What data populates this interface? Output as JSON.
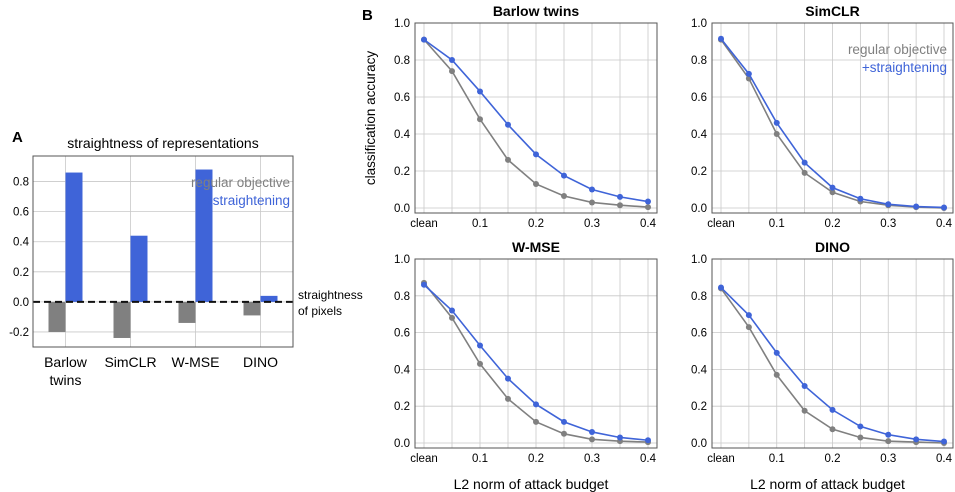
{
  "colors": {
    "regular": "#808080",
    "straightening": "#3f64d8",
    "grid": "#c8c8c8",
    "frame": "#555555"
  },
  "panel_labels": {
    "a": "A",
    "b": "B"
  },
  "legend": {
    "regular": "regular objective",
    "straightening": "+straightening"
  },
  "chart_data": [
    {
      "type": "bar",
      "title": "straightness of representations",
      "categories": [
        "Barlow twins",
        "SimCLR",
        "W-MSE",
        "DINO"
      ],
      "series": [
        {
          "name": "regular objective",
          "values": [
            -0.2,
            -0.24,
            -0.14,
            -0.09
          ]
        },
        {
          "name": "+straightening",
          "values": [
            0.86,
            0.44,
            0.88,
            0.04
          ]
        }
      ],
      "ylim": [
        -0.3,
        0.97
      ],
      "yticks": [
        "-0.2",
        "0.0",
        "0.2",
        "0.4",
        "0.6",
        "0.8"
      ],
      "reference_line": {
        "value": 0,
        "label_line1": "straightness",
        "label_line2": "of pixels"
      },
      "legend_placement": "top-right",
      "grid": true
    },
    {
      "type": "line",
      "title": "Barlow twins",
      "x": [
        0,
        0.05,
        0.1,
        0.15,
        0.2,
        0.25,
        0.3,
        0.35,
        0.4
      ],
      "xtick_labels": [
        "clean",
        "0.1",
        "0.2",
        "0.3",
        "0.4"
      ],
      "yticks": [
        "0.0",
        "0.2",
        "0.4",
        "0.6",
        "0.8",
        "1.0"
      ],
      "ylim": [
        0,
        1.0
      ],
      "ylabel": "classification accuracy",
      "series": [
        {
          "name": "regular objective",
          "values": [
            0.91,
            0.74,
            0.48,
            0.26,
            0.13,
            0.065,
            0.03,
            0.015,
            0.005
          ]
        },
        {
          "name": "+straightening",
          "values": [
            0.91,
            0.8,
            0.63,
            0.45,
            0.29,
            0.175,
            0.1,
            0.06,
            0.035
          ]
        }
      ],
      "grid": true
    },
    {
      "type": "line",
      "title": "SimCLR",
      "x": [
        0,
        0.05,
        0.1,
        0.15,
        0.2,
        0.25,
        0.3,
        0.35,
        0.4
      ],
      "xtick_labels": [
        "clean",
        "0.1",
        "0.2",
        "0.3",
        "0.4"
      ],
      "yticks": [
        "0.0",
        "0.2",
        "0.4",
        "0.6",
        "0.8",
        "1.0"
      ],
      "ylim": [
        0,
        1.0
      ],
      "series": [
        {
          "name": "regular objective",
          "values": [
            0.91,
            0.7,
            0.4,
            0.19,
            0.085,
            0.035,
            0.015,
            0.005,
            0.0
          ]
        },
        {
          "name": "+straightening",
          "values": [
            0.915,
            0.725,
            0.46,
            0.245,
            0.11,
            0.05,
            0.02,
            0.008,
            0.003
          ]
        }
      ],
      "legend_placement": "top-right",
      "grid": true
    },
    {
      "type": "line",
      "title": "W-MSE",
      "x": [
        0,
        0.05,
        0.1,
        0.15,
        0.2,
        0.25,
        0.3,
        0.35,
        0.4
      ],
      "xtick_labels": [
        "clean",
        "0.1",
        "0.2",
        "0.3",
        "0.4"
      ],
      "yticks": [
        "0.0",
        "0.2",
        "0.4",
        "0.6",
        "0.8",
        "1.0"
      ],
      "ylim": [
        0,
        1.0
      ],
      "xlabel": "L2 norm of attack budget",
      "series": [
        {
          "name": "regular objective",
          "values": [
            0.87,
            0.68,
            0.43,
            0.24,
            0.115,
            0.05,
            0.02,
            0.01,
            0.005
          ]
        },
        {
          "name": "+straightening",
          "values": [
            0.86,
            0.72,
            0.53,
            0.35,
            0.21,
            0.115,
            0.06,
            0.03,
            0.015
          ]
        }
      ],
      "grid": true
    },
    {
      "type": "line",
      "title": "DINO",
      "x": [
        0,
        0.05,
        0.1,
        0.15,
        0.2,
        0.25,
        0.3,
        0.35,
        0.4
      ],
      "xtick_labels": [
        "clean",
        "0.1",
        "0.2",
        "0.3",
        "0.4"
      ],
      "yticks": [
        "0.0",
        "0.2",
        "0.4",
        "0.6",
        "0.8",
        "1.0"
      ],
      "ylim": [
        0,
        1.0
      ],
      "xlabel": "L2 norm of attack budget",
      "series": [
        {
          "name": "regular objective",
          "values": [
            0.84,
            0.63,
            0.37,
            0.175,
            0.075,
            0.03,
            0.01,
            0.005,
            0.0
          ]
        },
        {
          "name": "+straightening",
          "values": [
            0.845,
            0.695,
            0.49,
            0.31,
            0.18,
            0.09,
            0.045,
            0.02,
            0.008
          ]
        }
      ],
      "grid": true
    }
  ]
}
